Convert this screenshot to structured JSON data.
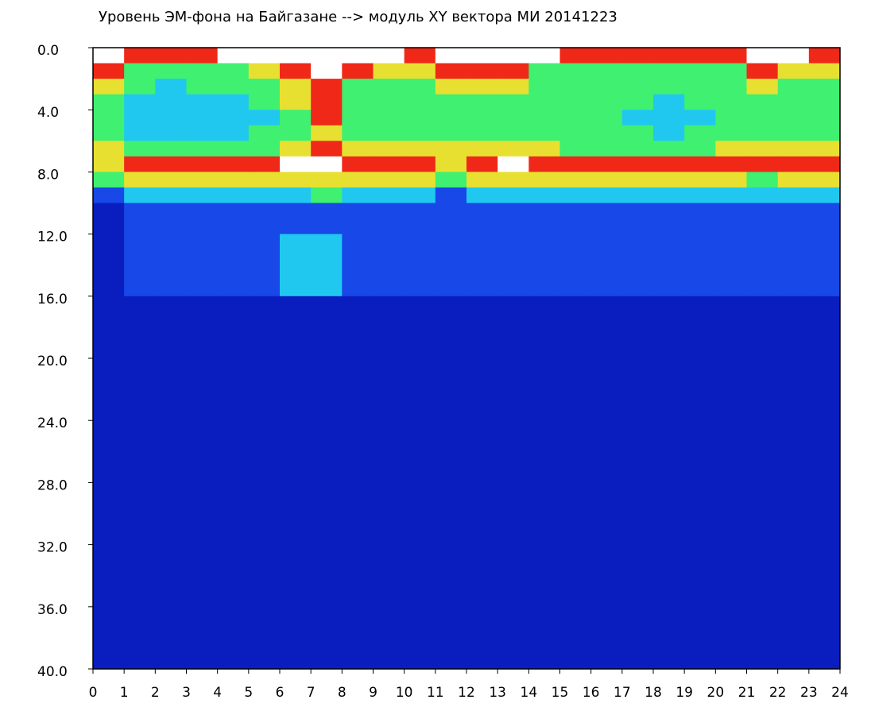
{
  "chart_data": {
    "type": "heatmap",
    "title": "Уровень ЭМ-фона на Байгазане  -->  модуль XY вектора МИ  20141223",
    "xbins": [
      0,
      1,
      2,
      3,
      4,
      5,
      6,
      7,
      8,
      9,
      10,
      11,
      12,
      13,
      14,
      15,
      16,
      17,
      18,
      19,
      20,
      21,
      22,
      23,
      24
    ],
    "ybins": [
      0,
      1,
      2,
      3,
      4,
      5,
      6,
      7,
      8,
      9,
      10,
      12,
      16,
      40
    ],
    "xlim": [
      0,
      24
    ],
    "ylim": [
      0,
      40
    ],
    "y_inverted": true,
    "xticks": [
      0,
      1,
      2,
      3,
      4,
      5,
      6,
      7,
      8,
      9,
      10,
      11,
      12,
      13,
      14,
      15,
      16,
      17,
      18,
      19,
      20,
      21,
      22,
      23,
      24
    ],
    "yticks": [
      {
        "value": 0,
        "label": "0.0"
      },
      {
        "value": 4,
        "label": "4.0"
      },
      {
        "value": 8,
        "label": "8.0"
      },
      {
        "value": 12,
        "label": "12.0"
      },
      {
        "value": 16,
        "label": "16.0"
      },
      {
        "value": 20,
        "label": "20.0"
      },
      {
        "value": 24,
        "label": "24.0"
      },
      {
        "value": 28,
        "label": "28.0"
      },
      {
        "value": 32,
        "label": "32.0"
      },
      {
        "value": 36,
        "label": "36.0"
      },
      {
        "value": 40,
        "label": "40.0"
      }
    ],
    "colors": [
      "#0a1ec0",
      "#1848e8",
      "#20c8f0",
      "#40f070",
      "#e8e030",
      "#f02818",
      "#ffffff"
    ],
    "values": [
      [
        6,
        5,
        5,
        5,
        6,
        6,
        6,
        6,
        6,
        6,
        5,
        6,
        6,
        6,
        6,
        5,
        5,
        5,
        5,
        5,
        5,
        6,
        6,
        5
      ],
      [
        5,
        3,
        3,
        3,
        3,
        4,
        5,
        6,
        5,
        4,
        4,
        5,
        5,
        5,
        3,
        3,
        3,
        3,
        3,
        3,
        3,
        5,
        4,
        4
      ],
      [
        4,
        3,
        2,
        3,
        3,
        3,
        4,
        5,
        3,
        3,
        3,
        4,
        4,
        4,
        3,
        3,
        3,
        3,
        3,
        3,
        3,
        4,
        3,
        3
      ],
      [
        3,
        2,
        2,
        2,
        2,
        3,
        4,
        5,
        3,
        3,
        3,
        3,
        3,
        3,
        3,
        3,
        3,
        3,
        2,
        3,
        3,
        3,
        3,
        3
      ],
      [
        3,
        2,
        2,
        2,
        2,
        2,
        3,
        5,
        3,
        3,
        3,
        3,
        3,
        3,
        3,
        3,
        3,
        2,
        2,
        2,
        3,
        3,
        3,
        3
      ],
      [
        3,
        2,
        2,
        2,
        2,
        3,
        3,
        4,
        3,
        3,
        3,
        3,
        3,
        3,
        3,
        3,
        3,
        3,
        2,
        3,
        3,
        3,
        3,
        3
      ],
      [
        4,
        3,
        3,
        3,
        3,
        3,
        4,
        5,
        4,
        4,
        4,
        4,
        4,
        4,
        4,
        3,
        3,
        3,
        3,
        3,
        4,
        4,
        4,
        4
      ],
      [
        4,
        5,
        5,
        5,
        5,
        5,
        6,
        6,
        5,
        5,
        5,
        4,
        5,
        6,
        5,
        5,
        5,
        5,
        5,
        5,
        5,
        5,
        5,
        5
      ],
      [
        3,
        4,
        4,
        4,
        4,
        4,
        4,
        4,
        4,
        4,
        4,
        3,
        4,
        4,
        4,
        4,
        4,
        4,
        4,
        4,
        4,
        3,
        4,
        4
      ],
      [
        1,
        2,
        2,
        2,
        2,
        2,
        2,
        3,
        2,
        2,
        2,
        1,
        2,
        2,
        2,
        2,
        2,
        2,
        2,
        2,
        2,
        2,
        2,
        2
      ],
      [
        0,
        1,
        1,
        1,
        1,
        1,
        1,
        1,
        1,
        1,
        1,
        1,
        1,
        1,
        1,
        1,
        1,
        1,
        1,
        1,
        1,
        1,
        1,
        1
      ],
      [
        0,
        1,
        1,
        1,
        1,
        1,
        2,
        2,
        1,
        1,
        1,
        1,
        1,
        1,
        1,
        1,
        1,
        1,
        1,
        1,
        1,
        1,
        1,
        1
      ],
      [
        0,
        0,
        0,
        0,
        0,
        0,
        0,
        0,
        0,
        0,
        0,
        0,
        0,
        0,
        0,
        0,
        0,
        0,
        0,
        0,
        0,
        0,
        0,
        0
      ]
    ]
  }
}
